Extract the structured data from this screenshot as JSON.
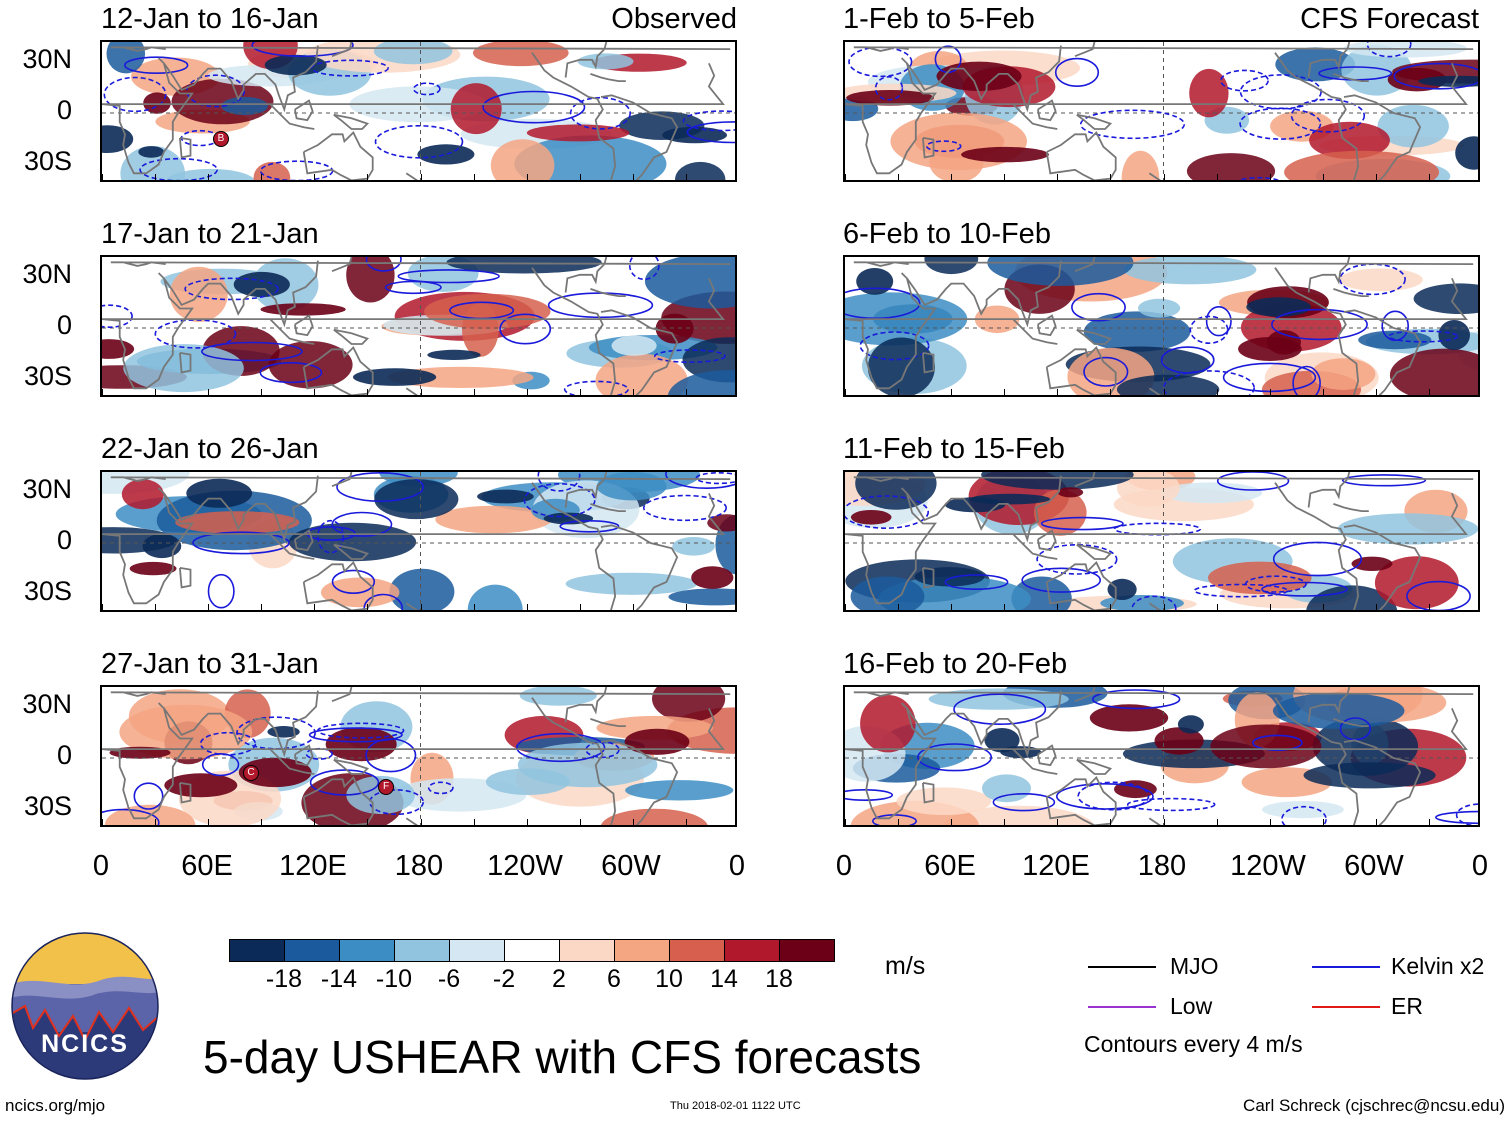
{
  "colors": {
    "kelvin": "#1a1adb",
    "mjo": "#000000",
    "low": "#9a32cd",
    "er": "#e11919",
    "land": "#777777",
    "scale": [
      "#0b2a57",
      "#1b5a9c",
      "#3c8dc3",
      "#90c4df",
      "#d4e7f2",
      "#ffffff",
      "#fbd8c6",
      "#f4a582",
      "#d6604d",
      "#b2182b",
      "#6b0016"
    ]
  },
  "panels": [
    {
      "title": "12-Jan to 16-Jan",
      "tag": "Observed"
    },
    {
      "title": "1-Feb to 5-Feb",
      "tag": "CFS Forecast"
    },
    {
      "title": "17-Jan to 21-Jan",
      "tag": ""
    },
    {
      "title": "6-Feb to 10-Feb",
      "tag": ""
    },
    {
      "title": "22-Jan to 26-Jan",
      "tag": ""
    },
    {
      "title": "11-Feb to 15-Feb",
      "tag": ""
    },
    {
      "title": "27-Jan to 31-Jan",
      "tag": ""
    },
    {
      "title": "16-Feb to 20-Feb",
      "tag": ""
    }
  ],
  "lat_labels": [
    "30N",
    "0",
    "30S"
  ],
  "lon_labels": [
    "0",
    "60E",
    "120E",
    "180",
    "120W",
    "60W",
    "0"
  ],
  "colorbar": {
    "ticks": [
      "-18",
      "-14",
      "-10",
      "-6",
      "-2",
      "2",
      "6",
      "10",
      "14",
      "18"
    ],
    "units": "m/s"
  },
  "legend": {
    "mjo": "MJO",
    "kelvin": "Kelvin x2",
    "low": "Low",
    "er": "ER",
    "contours": "Contours every 4 m/s"
  },
  "storms": [
    {
      "panel": 0,
      "label": "B"
    },
    {
      "panel": 6,
      "label": "C"
    },
    {
      "panel": 6,
      "label": "F"
    }
  ],
  "logo_text": "NCICS",
  "main_title": "5-day USHEAR with CFS forecasts",
  "footer": {
    "url": "ncics.org/mjo",
    "timestamp": "Thu 2018-02-01 1122 UTC",
    "credit": "Carl Schreck (cjschrec@ncsu.edu)"
  }
}
